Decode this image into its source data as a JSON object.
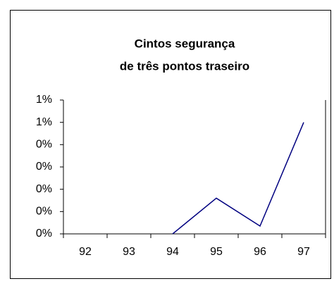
{
  "chart_data": {
    "type": "line",
    "title": [
      "Cintos segurança",
      "de três pontos traseiro"
    ],
    "categories": [
      "92",
      "93",
      "94",
      "95",
      "96",
      "97"
    ],
    "series": [
      {
        "color": "#000080",
        "values": [
          null,
          null,
          0,
          0.32,
          0.07,
          1.0
        ]
      }
    ],
    "ylim": [
      0,
      1.2
    ],
    "yticks": [
      {
        "value": 0,
        "label": "0%"
      },
      {
        "value": 0.2,
        "label": "0%"
      },
      {
        "value": 0.4,
        "label": "0%"
      },
      {
        "value": 0.6,
        "label": "0%"
      },
      {
        "value": 0.8,
        "label": "0%"
      },
      {
        "value": 1.0,
        "label": "1%"
      },
      {
        "value": 1.2,
        "label": "1%"
      }
    ]
  }
}
